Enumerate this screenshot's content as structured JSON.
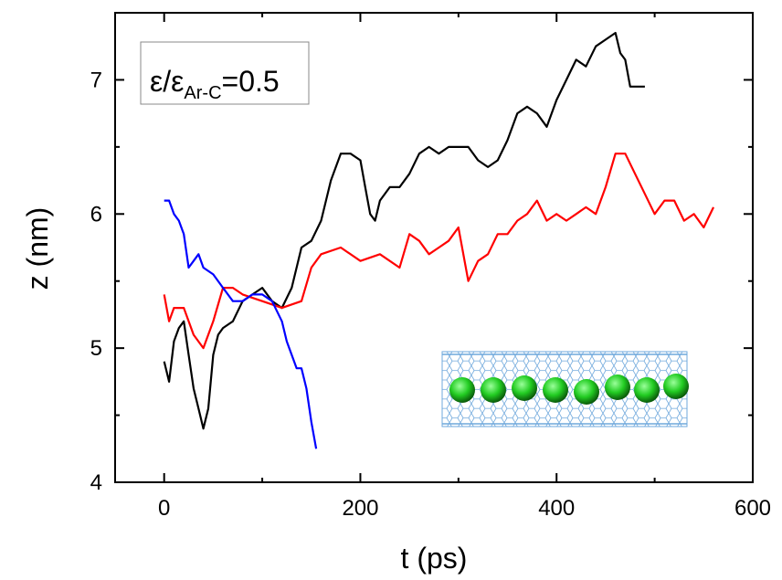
{
  "chart_data": {
    "type": "line",
    "title": "",
    "xlabel": "t (ps)",
    "ylabel": "z (nm)",
    "xlim": [
      -50,
      600
    ],
    "ylim": [
      4,
      7.5
    ],
    "x_ticks": [
      0,
      200,
      400,
      600
    ],
    "x_tick_labels": [
      "0",
      "200",
      "400",
      "600"
    ],
    "y_ticks": [
      4,
      5,
      6,
      7
    ],
    "y_tick_labels": [
      "4",
      "5",
      "6",
      "7"
    ],
    "grid": false,
    "legend": "none",
    "annotation": {
      "prefix": "ε/ε",
      "subscript": "Ar-C",
      "suffix": "=0.5"
    },
    "inset": "carbon-nanotube-with-argon-atoms",
    "series": [
      {
        "color": "#000000",
        "x": [
          0,
          5,
          10,
          15,
          20,
          25,
          30,
          35,
          40,
          45,
          50,
          55,
          60,
          70,
          80,
          90,
          100,
          110,
          120,
          130,
          140,
          150,
          160,
          170,
          180,
          190,
          200,
          205,
          210,
          215,
          220,
          230,
          240,
          250,
          260,
          270,
          280,
          290,
          300,
          310,
          320,
          330,
          340,
          350,
          360,
          370,
          380,
          390,
          400,
          410,
          420,
          430,
          440,
          450,
          460,
          465,
          470,
          475,
          480,
          490
        ],
        "y": [
          4.9,
          4.75,
          5.05,
          5.15,
          5.2,
          4.95,
          4.7,
          4.55,
          4.4,
          4.55,
          4.95,
          5.1,
          5.15,
          5.2,
          5.35,
          5.4,
          5.45,
          5.35,
          5.3,
          5.45,
          5.75,
          5.8,
          5.95,
          6.25,
          6.45,
          6.45,
          6.4,
          6.2,
          6.0,
          5.95,
          6.1,
          6.2,
          6.2,
          6.3,
          6.45,
          6.5,
          6.45,
          6.5,
          6.5,
          6.5,
          6.4,
          6.35,
          6.4,
          6.55,
          6.75,
          6.8,
          6.75,
          6.65,
          6.85,
          7.0,
          7.15,
          7.1,
          7.25,
          7.3,
          7.35,
          7.2,
          7.15,
          6.95,
          6.95,
          6.95
        ]
      },
      {
        "color": "#ff0000",
        "x": [
          0,
          5,
          10,
          20,
          30,
          40,
          50,
          60,
          70,
          80,
          100,
          120,
          140,
          150,
          160,
          180,
          200,
          220,
          240,
          250,
          260,
          270,
          280,
          290,
          300,
          310,
          320,
          330,
          340,
          350,
          360,
          370,
          380,
          390,
          400,
          410,
          420,
          430,
          440,
          450,
          460,
          470,
          480,
          490,
          500,
          510,
          520,
          530,
          540,
          550,
          560
        ],
        "y": [
          5.4,
          5.2,
          5.3,
          5.3,
          5.1,
          5.0,
          5.2,
          5.45,
          5.45,
          5.4,
          5.35,
          5.3,
          5.35,
          5.6,
          5.7,
          5.75,
          5.65,
          5.7,
          5.6,
          5.85,
          5.8,
          5.7,
          5.75,
          5.8,
          5.9,
          5.5,
          5.65,
          5.7,
          5.85,
          5.85,
          5.95,
          6.0,
          6.1,
          5.95,
          6.0,
          5.95,
          6.0,
          6.05,
          6.0,
          6.2,
          6.45,
          6.45,
          6.3,
          6.15,
          6.0,
          6.1,
          6.1,
          5.95,
          6.0,
          5.9,
          6.05
        ]
      },
      {
        "color": "#0000ff",
        "x": [
          0,
          5,
          10,
          15,
          20,
          25,
          30,
          35,
          40,
          50,
          60,
          70,
          80,
          90,
          100,
          110,
          120,
          125,
          130,
          135,
          140,
          145,
          150,
          155
        ],
        "y": [
          6.1,
          6.1,
          6.0,
          5.95,
          5.85,
          5.6,
          5.65,
          5.7,
          5.6,
          5.55,
          5.45,
          5.35,
          5.35,
          5.4,
          5.4,
          5.35,
          5.2,
          5.05,
          4.95,
          4.85,
          4.85,
          4.7,
          4.45,
          4.25
        ]
      }
    ]
  }
}
